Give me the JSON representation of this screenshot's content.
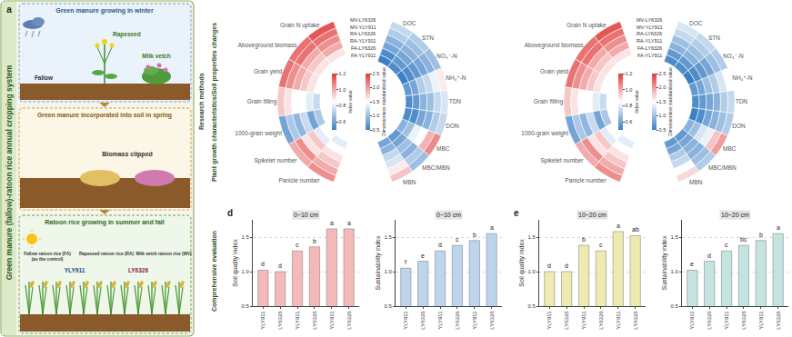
{
  "diagram": {
    "panel": "a",
    "title": "Green manure (fallow)-ratoon rice annual cropping system",
    "stages": [
      {
        "title": "Green manure growing in winter",
        "labels": [
          "Rapeseed",
          "Milk vetch",
          "Fallow"
        ]
      },
      {
        "title": "Green manure incorporated into soil in spring",
        "labels": [
          "Biomass clipped"
        ]
      },
      {
        "title": "Ratoon rice growing in summer and fall",
        "labels": [
          [
            "Fallow ratoon rice (FA)",
            "(as the control)"
          ],
          [
            "Rapeseed ratoon rice (RA)"
          ],
          [
            "Milk vetch ratoon rice (MV)"
          ]
        ],
        "cultivars": [
          "YLY911",
          "LY6326"
        ]
      }
    ]
  },
  "section_labels": {
    "methods": "Research methods",
    "changes": "Plant growth characteristics/Soil properties changes",
    "evaluation": "Comprehensive evaluation"
  },
  "heatmaps": [
    {
      "rows": [
        "MV-LY6326",
        "MV-YLY911",
        "RA-LY6326",
        "RA-YLY911",
        "FA-LY6326",
        "FA-YLY911"
      ],
      "plant": {
        "variables": [
          "Grain N uptake",
          "Aboveground biomass",
          "Grain yield",
          "Grain filling",
          "1000-grain weight",
          "Spikelet number",
          "Panicle number"
        ],
        "values": [
          [
            1.15,
            1.1,
            1.1,
            0.95,
            0.6,
            1.0,
            1.05
          ],
          [
            1.1,
            1.1,
            1.05,
            0.9,
            0.7,
            1.05,
            1.0
          ],
          [
            1.05,
            1.0,
            1.0,
            0.85,
            0.65,
            0.9,
            0.95
          ],
          [
            1.0,
            0.95,
            0.95,
            0.85,
            0.75,
            0.95,
            0.9
          ],
          [
            0.9,
            0.9,
            0.9,
            0.8,
            0.6,
            0.8,
            0.85
          ],
          [
            0.85,
            0.85,
            0.85,
            0.75,
            0.7,
            0.85,
            0.8
          ]
        ],
        "colorbar": {
          "title": "Index value",
          "range": [
            0.5,
            1.2
          ],
          "ticks": [
            0.6,
            0.8,
            {
              "value": 1,
              "label": "1.0"
            },
            1.2
          ]
        }
      },
      "soil": {
        "variables": [
          "MBN",
          "MBC/MBN",
          "MBC",
          "DON",
          "TDN",
          "NH₄⁺-N",
          "NO₃⁻-N",
          "STN",
          "DOC"
        ],
        "values": [
          [
            1.8,
            1.0,
            2.1,
            1.2,
            1.3,
            1.6,
            1.0,
            1.1,
            1.2
          ],
          [
            1.6,
            1.1,
            1.9,
            1.1,
            1.2,
            1.4,
            0.9,
            1.0,
            1.1
          ],
          [
            1.3,
            0.9,
            1.5,
            0.9,
            1.0,
            1.2,
            0.8,
            0.9,
            0.9
          ],
          [
            1.2,
            1.0,
            1.4,
            0.8,
            0.9,
            1.1,
            0.7,
            0.8,
            0.8
          ],
          [
            0.9,
            0.8,
            1.0,
            0.6,
            0.7,
            0.8,
            0.6,
            0.7,
            0.6
          ],
          [
            0.8,
            0.7,
            0.9,
            0.6,
            0.6,
            0.7,
            0.5,
            0.6,
            0.5
          ]
        ],
        "colorbar": {
          "title": "Dimensionless standardized value",
          "range": [
            0.5,
            2.5
          ],
          "ticks": [
            0.5,
            {
              "value": 1,
              "label": "1.0"
            },
            1.5,
            {
              "value": 2,
              "label": "2.0"
            },
            2.5
          ]
        }
      }
    },
    {
      "rows": [
        "MV-LY6326",
        "MV-YLY911",
        "RA-LY6326",
        "RA-YLY911",
        "FA-LY6326",
        "FA-YLY911"
      ],
      "plant": {
        "variables": [
          "Grain N uptake",
          "Aboveground biomass",
          "Grain yield",
          "Grain filling",
          "1000-grain weight",
          "Spikelet number",
          "Panicle number"
        ],
        "values": [
          [
            1.15,
            1.1,
            1.1,
            0.95,
            0.6,
            1.0,
            1.05
          ],
          [
            1.1,
            1.1,
            1.05,
            0.9,
            0.7,
            1.05,
            1.0
          ],
          [
            1.05,
            1.0,
            1.0,
            0.85,
            0.65,
            0.9,
            0.95
          ],
          [
            1.0,
            0.95,
            0.95,
            0.85,
            0.75,
            0.95,
            0.9
          ],
          [
            0.9,
            0.9,
            0.9,
            0.8,
            0.6,
            0.8,
            0.85
          ],
          [
            0.85,
            0.85,
            0.85,
            0.75,
            0.7,
            0.85,
            0.8
          ]
        ],
        "colorbar": {
          "title": "Index value",
          "range": [
            0.5,
            1.2
          ],
          "ticks": [
            0.6,
            0.8,
            {
              "value": 1,
              "label": "1.0"
            },
            1.2
          ]
        }
      },
      "soil": {
        "variables": [
          "MBN",
          "MBC/MBN",
          "MBC",
          "DON",
          "TDN",
          "NH₄⁺-N",
          "NO₃⁻-N",
          "STN",
          "DOC"
        ],
        "values": [
          [
            1.7,
            1.1,
            2.0,
            1.1,
            1.2,
            1.5,
            1.1,
            1.2,
            1.3
          ],
          [
            1.5,
            1.0,
            1.8,
            1.0,
            1.1,
            1.3,
            1.0,
            1.1,
            1.2
          ],
          [
            1.2,
            0.9,
            1.4,
            0.9,
            0.9,
            1.1,
            0.8,
            1.0,
            1.0
          ],
          [
            1.1,
            0.9,
            1.3,
            0.8,
            0.8,
            1.0,
            0.7,
            0.9,
            0.9
          ],
          [
            0.8,
            0.8,
            1.0,
            0.6,
            0.7,
            0.8,
            0.6,
            0.7,
            0.7
          ],
          [
            0.7,
            0.7,
            0.9,
            0.5,
            0.6,
            0.7,
            0.5,
            0.6,
            0.6
          ]
        ],
        "colorbar": {
          "title": "Dimensionless standardized value",
          "range": [
            0.5,
            2.5
          ],
          "ticks": [
            0.5,
            {
              "value": 1,
              "label": "1.0"
            },
            1.5,
            {
              "value": 2,
              "label": "2.0"
            },
            2.5
          ]
        }
      }
    }
  ],
  "chart_data": [
    {
      "type": "bar",
      "panel": "d",
      "title": "0~10 cm",
      "y_label": "Soil quality index",
      "categories": [
        "YLY911",
        "LY6326",
        "YLY911",
        "LY6326",
        "YLY911",
        "LY6326"
      ],
      "values": [
        1.02,
        1.0,
        1.3,
        1.36,
        1.62,
        1.62
      ],
      "annotations": [
        "d",
        "d",
        "c",
        "b",
        "a",
        "a"
      ],
      "color": "#f4b9b9",
      "ylim": [
        0.5,
        1.75
      ],
      "yticks": [
        0.5,
        {
          "value": 1,
          "label": "1.0"
        },
        1.5
      ],
      "grid": true
    },
    {
      "type": "bar",
      "title": "0~10 cm",
      "y_label": "Sustainability index",
      "categories": [
        "YLY911",
        "LY6326",
        "YLY911",
        "LY6326",
        "YLY911",
        "LY6326"
      ],
      "values": [
        1.05,
        1.15,
        1.3,
        1.38,
        1.45,
        1.55
      ],
      "annotations": [
        "f",
        "e",
        "d",
        "c",
        "b",
        "a"
      ],
      "color": "#bcd4ec",
      "ylim": [
        0.5,
        1.75
      ],
      "yticks": [
        0.5,
        {
          "value": 1,
          "label": "1.0"
        },
        1.5
      ],
      "grid": true
    },
    {
      "type": "bar",
      "panel": "e",
      "title": "10~20 cm",
      "y_label": "Soil quality index",
      "categories": [
        "YLY911",
        "LY6326",
        "YLY911",
        "LY6326",
        "YLY911",
        "LY6326"
      ],
      "values": [
        1.0,
        1.0,
        1.38,
        1.3,
        1.58,
        1.52
      ],
      "annotations": [
        "d",
        "d",
        "b",
        "c",
        "a",
        "ab"
      ],
      "color": "#eeeab0",
      "ylim": [
        0.5,
        1.75
      ],
      "yticks": [
        0.5,
        {
          "value": 1,
          "label": "1.0"
        },
        1.5
      ],
      "grid": true
    },
    {
      "type": "bar",
      "title": "10~20 cm",
      "y_label": "Sustainability index",
      "categories": [
        "YLY911",
        "LY6326",
        "YLY911",
        "LY6326",
        "YLY911",
        "LY6326"
      ],
      "values": [
        1.02,
        1.15,
        1.3,
        1.38,
        1.45,
        1.55
      ],
      "annotations": [
        "e",
        "d",
        "c",
        "bc",
        "b",
        "a"
      ],
      "color": "#c4e3e1",
      "ylim": [
        0.5,
        1.75
      ],
      "yticks": [
        0.5,
        {
          "value": 1,
          "label": "1.0"
        },
        1.5
      ],
      "grid": true
    }
  ]
}
